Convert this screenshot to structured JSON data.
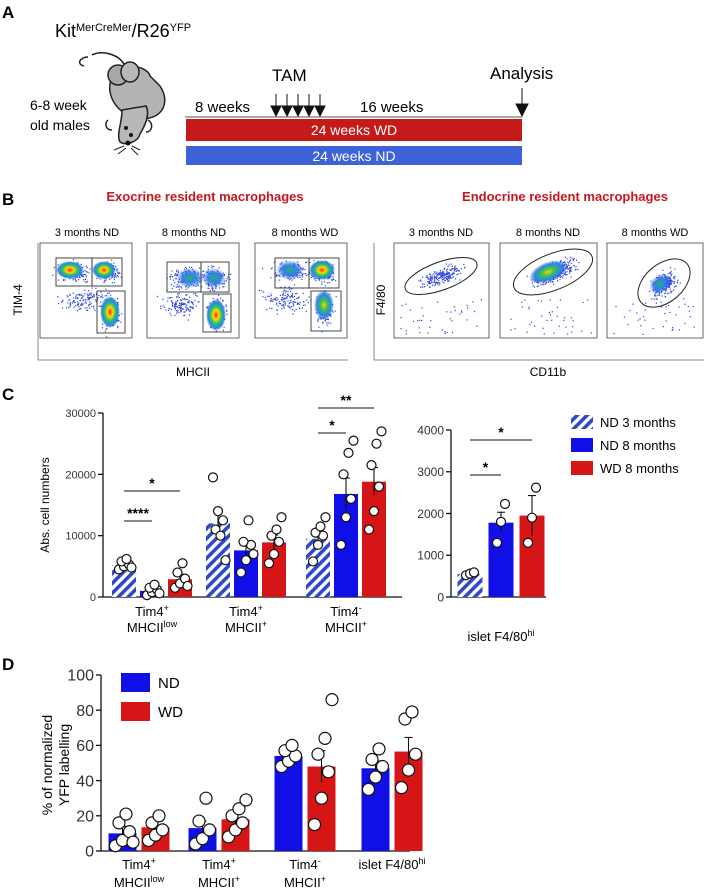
{
  "panel_a": {
    "label": "A",
    "strain_main": "Kit",
    "strain_sup1": "MerCreMer",
    "strain_mid": "/R26",
    "strain_sup2": "YFP",
    "age_line1": "6-8 week",
    "age_line2": "old males",
    "tam": "TAM",
    "analysis": "Analysis",
    "weeks_before": "8 weeks",
    "weeks_after": "16 weeks",
    "bar_wd": "24 weeks WD",
    "bar_nd": "24 weeks ND",
    "colors": {
      "wd": "#c41a1a",
      "nd": "#3e63d8"
    }
  },
  "panel_b": {
    "label": "B",
    "exocrine_title": "Exocrine resident macrophages",
    "endocrine_title": "Endocrine resident macrophages",
    "exo_plots": [
      "3 months ND",
      "8 months ND",
      "8 months WD"
    ],
    "endo_plots": [
      "3 months ND",
      "8 months ND",
      "8 months WD"
    ],
    "exo_ylabel": "TIM-4",
    "exo_xlabel": "MHCII",
    "endo_ylabel": "F4/80",
    "endo_xlabel": "CD11b",
    "title_color": "#c8161d"
  },
  "panel_c": {
    "label": "C",
    "ylabel": "Abs. cell numbers",
    "legend": [
      "ND 3 months",
      "ND 8 months",
      "WD 8 months"
    ]
  },
  "panel_d": {
    "label": "D",
    "ylabel_line1": "% of normalized",
    "ylabel_line2": "YFP labelling",
    "legend": [
      "ND",
      "WD"
    ]
  },
  "chart_data": [
    {
      "type": "bar",
      "id": "C-left",
      "title": "",
      "ylabel": "Abs. cell numbers",
      "ylim": [
        0,
        30000
      ],
      "yticks": [
        "0",
        "10000",
        "20000",
        "30000"
      ],
      "categories": [
        {
          "line1": "Tim4",
          "sup1": "+",
          "line2": "MHCII",
          "sup2": "low"
        },
        {
          "line1": "Tim4",
          "sup1": "+",
          "line2": "MHCII",
          "sup2": "+"
        },
        {
          "line1": "Tim4",
          "sup1": "-",
          "line2": "MHCII",
          "sup2": "+"
        }
      ],
      "series": [
        {
          "name": "ND 3 months",
          "values": [
            5200,
            12000,
            9500
          ],
          "errors": [
            500,
            1800,
            1100
          ],
          "points": [
            [
              4500,
              5000,
              5300,
              5800,
              6200,
              4800
            ],
            [
              19500,
              14000,
              12500,
              11000,
              10000,
              6000
            ],
            [
              5800,
              8500,
              10000,
              10500,
              11500,
              13000
            ]
          ]
        },
        {
          "name": "ND 8 months",
          "values": [
            1000,
            7600,
            16800
          ],
          "errors": [
            300,
            1400,
            2600
          ],
          "points": [
            [
              300,
              800,
              1200,
              1500,
              2000,
              600
            ],
            [
              4000,
              6000,
              8500,
              9000,
              12500,
              7000
            ],
            [
              8500,
              13000,
              16000,
              20000,
              23500,
              25500
            ]
          ]
        },
        {
          "name": "WD 8 months",
          "values": [
            2900,
            8900,
            18800
          ],
          "errors": [
            800,
            1200,
            2300
          ],
          "points": [
            [
              1500,
              2200,
              3000,
              4000,
              5500,
              1800
            ],
            [
              5500,
              7000,
              9000,
              10000,
              11000,
              13000
            ],
            [
              11000,
              14000,
              18000,
              21500,
              25000,
              27000
            ]
          ]
        }
      ],
      "significance": [
        {
          "group": 0,
          "label": "****",
          "from": 0,
          "to": 1
        },
        {
          "group": 0,
          "label": "*",
          "from": 0,
          "to": 2
        },
        {
          "group": 2,
          "label": "*",
          "from": 0,
          "to": 1
        },
        {
          "group": 2,
          "label": "**",
          "from": 0,
          "to": 2
        }
      ]
    },
    {
      "type": "bar",
      "id": "C-right",
      "ylim": [
        0,
        4000
      ],
      "yticks": [
        "0",
        "1000",
        "2000",
        "3000",
        "4000"
      ],
      "categories": [
        {
          "line1": "islet F4/80",
          "sup1": "hi"
        }
      ],
      "series": [
        {
          "name": "ND 3 months",
          "values": [
            550
          ],
          "errors": [
            30
          ],
          "points": [
            [
              520,
              560,
              590
            ]
          ]
        },
        {
          "name": "ND 8 months",
          "values": [
            1780
          ],
          "errors": [
            250
          ],
          "points": [
            [
              1300,
              1800,
              2230
            ]
          ]
        },
        {
          "name": "WD 8 months",
          "values": [
            1950
          ],
          "errors": [
            480
          ],
          "points": [
            [
              1300,
              1900,
              2620
            ]
          ]
        }
      ],
      "significance": [
        {
          "label": "*",
          "from": 0,
          "to": 1
        },
        {
          "label": "*",
          "from": 0,
          "to": 2
        }
      ]
    },
    {
      "type": "bar",
      "id": "D",
      "ylabel": "% of normalized YFP labelling",
      "ylim": [
        0,
        100
      ],
      "yticks": [
        "0",
        "20",
        "40",
        "60",
        "80",
        "100"
      ],
      "categories": [
        {
          "line1": "Tim4",
          "sup1": "+",
          "line2": "MHCII",
          "sup2": "low"
        },
        {
          "line1": "Tim4",
          "sup1": "+",
          "line2": "MHCII",
          "sup2": "+"
        },
        {
          "line1": "Tim4",
          "sup1": "-",
          "line2": "MHCII",
          "sup2": "+"
        },
        {
          "line1": "islet F4/80",
          "sup1": "hi"
        }
      ],
      "series": [
        {
          "name": "ND",
          "values": [
            10,
            13,
            54,
            47
          ],
          "errors": [
            4,
            4,
            3,
            4
          ],
          "points": [
            [
              3,
              6,
              11,
              16,
              21,
              5
            ],
            [
              4,
              7,
              12,
              17,
              30
            ],
            [
              48,
              51,
              54,
              57,
              60
            ],
            [
              35,
              42,
              48,
              52,
              58
            ]
          ]
        },
        {
          "name": "WD",
          "values": [
            13.5,
            18,
            48,
            56.5
          ],
          "errors": [
            3,
            4,
            9,
            8
          ],
          "points": [
            [
              6,
              9,
              12,
              16,
              20
            ],
            [
              8,
              12,
              16,
              20,
              24,
              29
            ],
            [
              15,
              30,
              45,
              55,
              64,
              86
            ],
            [
              36,
              46,
              55,
              75,
              79
            ]
          ]
        }
      ]
    }
  ]
}
